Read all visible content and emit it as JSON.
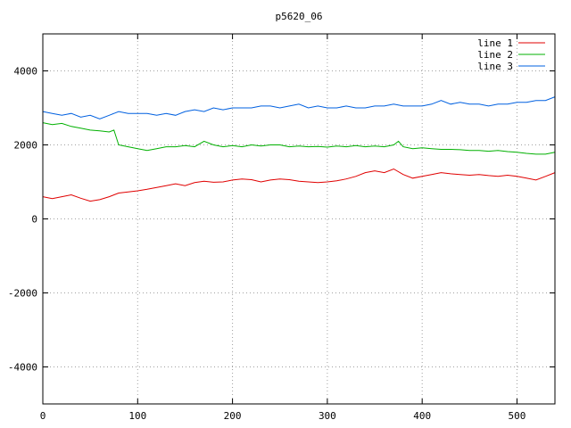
{
  "chart_data": {
    "type": "line",
    "title": "p5620_06",
    "xlabel": "",
    "ylabel": "",
    "xlim": [
      0,
      540
    ],
    "ylim": [
      -5000,
      5000
    ],
    "xticks": [
      0,
      100,
      200,
      300,
      400,
      500
    ],
    "yticks": [
      -4000,
      -2000,
      0,
      2000,
      4000
    ],
    "grid": true,
    "legend_position": "top-right",
    "series": [
      {
        "name": "line 1",
        "color": "#e00000",
        "points": [
          [
            0,
            600
          ],
          [
            10,
            550
          ],
          [
            20,
            600
          ],
          [
            30,
            650
          ],
          [
            40,
            560
          ],
          [
            50,
            480
          ],
          [
            60,
            520
          ],
          [
            70,
            600
          ],
          [
            80,
            700
          ],
          [
            90,
            730
          ],
          [
            100,
            760
          ],
          [
            110,
            800
          ],
          [
            120,
            850
          ],
          [
            130,
            900
          ],
          [
            140,
            950
          ],
          [
            150,
            900
          ],
          [
            160,
            980
          ],
          [
            170,
            1020
          ],
          [
            180,
            990
          ],
          [
            190,
            1000
          ],
          [
            200,
            1050
          ],
          [
            210,
            1080
          ],
          [
            220,
            1060
          ],
          [
            230,
            1000
          ],
          [
            240,
            1050
          ],
          [
            250,
            1080
          ],
          [
            260,
            1060
          ],
          [
            270,
            1020
          ],
          [
            280,
            1000
          ],
          [
            290,
            980
          ],
          [
            300,
            1000
          ],
          [
            310,
            1030
          ],
          [
            320,
            1080
          ],
          [
            330,
            1150
          ],
          [
            340,
            1250
          ],
          [
            350,
            1300
          ],
          [
            360,
            1250
          ],
          [
            370,
            1350
          ],
          [
            380,
            1200
          ],
          [
            390,
            1100
          ],
          [
            400,
            1150
          ],
          [
            410,
            1200
          ],
          [
            420,
            1250
          ],
          [
            430,
            1220
          ],
          [
            440,
            1200
          ],
          [
            450,
            1180
          ],
          [
            460,
            1200
          ],
          [
            470,
            1170
          ],
          [
            480,
            1150
          ],
          [
            490,
            1180
          ],
          [
            500,
            1150
          ],
          [
            510,
            1100
          ],
          [
            520,
            1050
          ],
          [
            530,
            1150
          ],
          [
            540,
            1250
          ]
        ]
      },
      {
        "name": "line 2",
        "color": "#00b000",
        "points": [
          [
            0,
            2600
          ],
          [
            10,
            2550
          ],
          [
            20,
            2580
          ],
          [
            30,
            2500
          ],
          [
            40,
            2450
          ],
          [
            50,
            2400
          ],
          [
            60,
            2380
          ],
          [
            70,
            2350
          ],
          [
            75,
            2400
          ],
          [
            80,
            2000
          ],
          [
            90,
            1950
          ],
          [
            100,
            1900
          ],
          [
            110,
            1850
          ],
          [
            120,
            1900
          ],
          [
            130,
            1950
          ],
          [
            140,
            1950
          ],
          [
            150,
            1980
          ],
          [
            160,
            1950
          ],
          [
            170,
            2100
          ],
          [
            180,
            2000
          ],
          [
            190,
            1950
          ],
          [
            200,
            1980
          ],
          [
            210,
            1950
          ],
          [
            220,
            2000
          ],
          [
            230,
            1970
          ],
          [
            240,
            2000
          ],
          [
            250,
            2000
          ],
          [
            260,
            1950
          ],
          [
            270,
            1970
          ],
          [
            280,
            1950
          ],
          [
            290,
            1960
          ],
          [
            300,
            1940
          ],
          [
            310,
            1970
          ],
          [
            320,
            1950
          ],
          [
            330,
            1980
          ],
          [
            340,
            1950
          ],
          [
            350,
            1970
          ],
          [
            360,
            1950
          ],
          [
            370,
            2000
          ],
          [
            375,
            2100
          ],
          [
            380,
            1950
          ],
          [
            390,
            1900
          ],
          [
            400,
            1920
          ],
          [
            410,
            1900
          ],
          [
            420,
            1880
          ],
          [
            430,
            1880
          ],
          [
            440,
            1870
          ],
          [
            450,
            1850
          ],
          [
            460,
            1850
          ],
          [
            470,
            1830
          ],
          [
            480,
            1850
          ],
          [
            490,
            1820
          ],
          [
            500,
            1800
          ],
          [
            510,
            1770
          ],
          [
            520,
            1750
          ],
          [
            530,
            1750
          ],
          [
            540,
            1800
          ]
        ]
      },
      {
        "name": "line 3",
        "color": "#0060e0",
        "points": [
          [
            0,
            2900
          ],
          [
            10,
            2850
          ],
          [
            20,
            2800
          ],
          [
            30,
            2850
          ],
          [
            40,
            2750
          ],
          [
            50,
            2800
          ],
          [
            60,
            2700
          ],
          [
            70,
            2800
          ],
          [
            80,
            2900
          ],
          [
            90,
            2850
          ],
          [
            100,
            2850
          ],
          [
            110,
            2850
          ],
          [
            120,
            2800
          ],
          [
            130,
            2850
          ],
          [
            140,
            2800
          ],
          [
            150,
            2900
          ],
          [
            160,
            2950
          ],
          [
            170,
            2900
          ],
          [
            180,
            3000
          ],
          [
            190,
            2950
          ],
          [
            200,
            3000
          ],
          [
            210,
            3000
          ],
          [
            220,
            3000
          ],
          [
            230,
            3050
          ],
          [
            240,
            3050
          ],
          [
            250,
            3000
          ],
          [
            260,
            3050
          ],
          [
            270,
            3100
          ],
          [
            280,
            3000
          ],
          [
            290,
            3050
          ],
          [
            300,
            3000
          ],
          [
            310,
            3000
          ],
          [
            320,
            3050
          ],
          [
            330,
            3000
          ],
          [
            340,
            3000
          ],
          [
            350,
            3050
          ],
          [
            360,
            3050
          ],
          [
            370,
            3100
          ],
          [
            380,
            3050
          ],
          [
            390,
            3050
          ],
          [
            400,
            3050
          ],
          [
            410,
            3100
          ],
          [
            420,
            3200
          ],
          [
            430,
            3100
          ],
          [
            440,
            3150
          ],
          [
            450,
            3100
          ],
          [
            460,
            3100
          ],
          [
            470,
            3050
          ],
          [
            480,
            3100
          ],
          [
            490,
            3100
          ],
          [
            500,
            3150
          ],
          [
            510,
            3150
          ],
          [
            520,
            3200
          ],
          [
            530,
            3200
          ],
          [
            540,
            3300
          ]
        ]
      }
    ]
  }
}
